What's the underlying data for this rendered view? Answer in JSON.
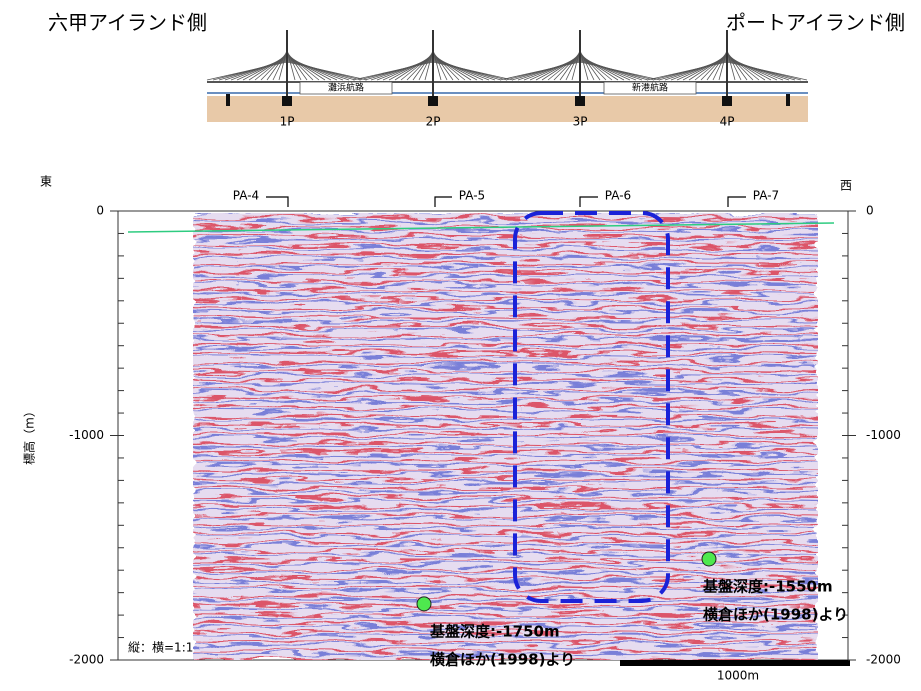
{
  "header": {
    "left_label": "六甲アイランド側",
    "right_label": "ポートアイランド側"
  },
  "bridge": {
    "piers": [
      "1P",
      "2P",
      "3P",
      "4P"
    ],
    "channels": [
      "灘浜航路",
      "新港航路"
    ]
  },
  "profile": {
    "direction_left": "東",
    "direction_right": "西",
    "y_label": "標高（m）",
    "ylim": [
      0,
      -2000
    ],
    "yticks": [
      0,
      -1000,
      -2000
    ],
    "wells": [
      "PA-4",
      "PA-5",
      "PA-6",
      "PA-7"
    ],
    "boreholes": [
      {
        "depth": -1750,
        "label": "基盤深度:-1750m",
        "source": "横倉ほか(1998)より"
      },
      {
        "depth": -1550,
        "label": "基盤深度:-1550m",
        "source": "横倉ほか(1998)より"
      }
    ],
    "scale_ratio": "縦：横=1:1",
    "scale_bar": "1000m"
  }
}
